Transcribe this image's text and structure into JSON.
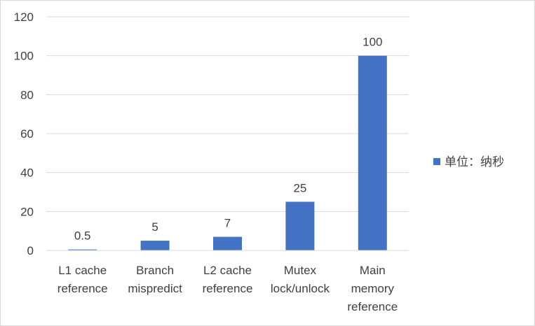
{
  "chart_data": {
    "type": "bar",
    "categories": [
      [
        "L1 cache",
        "reference"
      ],
      [
        "Branch",
        "mispredict"
      ],
      [
        "L2 cache",
        "reference"
      ],
      [
        "Mutex",
        "lock/unlock"
      ],
      [
        "Main",
        "memory",
        "reference"
      ]
    ],
    "series": [
      {
        "name": "单位：纳秒",
        "values": [
          0.5,
          5,
          7,
          25,
          100
        ],
        "color": "#4472c4"
      }
    ],
    "data_labels": [
      "0.5",
      "5",
      "7",
      "25",
      "100"
    ],
    "ylim": [
      0,
      120
    ],
    "yticks": [
      0,
      20,
      40,
      60,
      80,
      100,
      120
    ],
    "grid": true,
    "legend_position": "right"
  }
}
